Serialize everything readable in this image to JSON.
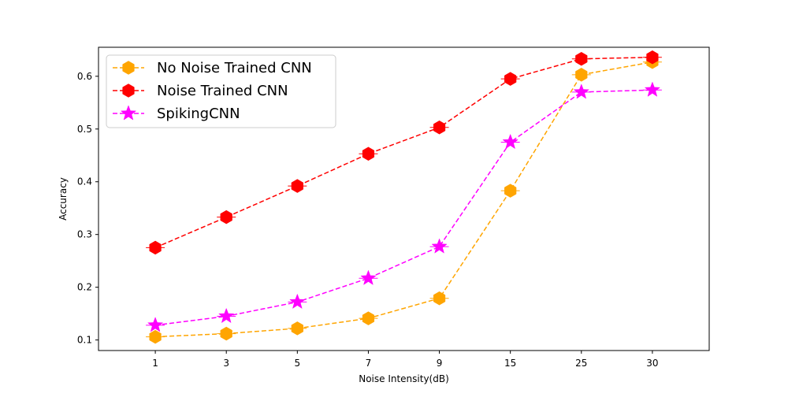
{
  "chart_data": {
    "type": "line",
    "title": "",
    "xlabel": "Noise Intensity(dB)",
    "ylabel": "Accuracy",
    "categories": [
      "1",
      "3",
      "5",
      "7",
      "9",
      "15",
      "25",
      "30"
    ],
    "ylim": [
      0.08,
      0.655
    ],
    "yticks": [
      "0.1",
      "0.2",
      "0.3",
      "0.4",
      "0.5",
      "0.6"
    ],
    "grid": false,
    "legend_position": "upper-left",
    "series": [
      {
        "name": "No Noise Trained CNN",
        "color": "#FFA500",
        "marker": "hexagon",
        "linestyle": "dashed",
        "values": [
          0.106,
          0.112,
          0.122,
          0.141,
          0.179,
          0.383,
          0.603,
          0.627
        ]
      },
      {
        "name": "Noise Trained CNN",
        "color": "#FF0000",
        "marker": "hexagon",
        "linestyle": "dashed",
        "values": [
          0.275,
          0.333,
          0.392,
          0.453,
          0.503,
          0.595,
          0.633,
          0.636
        ]
      },
      {
        "name": "SpikingCNN",
        "color": "#FF00FF",
        "marker": "star",
        "linestyle": "dashed",
        "values": [
          0.128,
          0.145,
          0.172,
          0.217,
          0.277,
          0.475,
          0.57,
          0.574
        ]
      }
    ]
  }
}
